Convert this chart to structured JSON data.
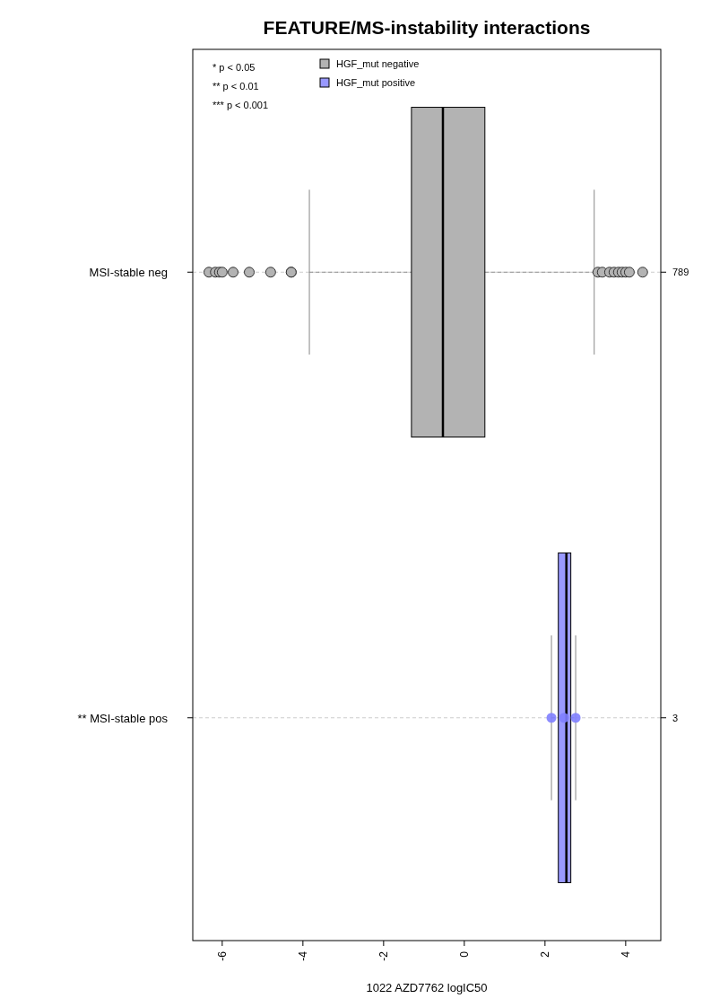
{
  "chart_data": {
    "type": "box",
    "title": "FEATURE/MS-instability interactions",
    "xlabel": "1022 AZD7762 logIC50",
    "orientation": "horizontal",
    "categories": [
      "MSI-stable neg",
      "** MSI-stable pos"
    ],
    "xlim": [
      -6.73,
      4.87
    ],
    "xticks": [
      -6,
      -4,
      -2,
      0,
      2,
      4
    ],
    "grid": "y",
    "legend": "top left",
    "series": [
      {
        "name": "HGF_mut negative",
        "color": "#b3b3b3",
        "boxes": [
          {
            "low": -3.84,
            "q1": -1.31,
            "median": -0.53,
            "q3": 0.51,
            "high": 3.22,
            "outliers": [
              -6.33,
              -6.17,
              -6.07,
              -6.0,
              -5.73,
              -5.33,
              -4.8,
              -4.29,
              -4.29,
              3.31,
              3.42,
              3.6,
              3.71,
              3.82,
              3.91,
              4.0,
              4.09,
              4.42
            ]
          },
          null
        ]
      },
      {
        "name": "HGF_mut positive",
        "color": "#9999ff",
        "boxes": [
          null,
          {
            "low": 2.16,
            "q1": 2.33,
            "median": 2.53,
            "q3": 2.64,
            "high": 2.76
          }
        ]
      },
      {
        "type": "scatter",
        "color": "#8080ff",
        "x": [
          "** MSI-stable pos",
          "** MSI-stable pos",
          "** MSI-stable pos"
        ],
        "values": [
          2.16,
          2.47,
          2.76
        ]
      }
    ],
    "annotations": [
      "* p < 0.05",
      "** p < 0.01",
      "*** p < 0.001",
      "789",
      "3"
    ]
  }
}
